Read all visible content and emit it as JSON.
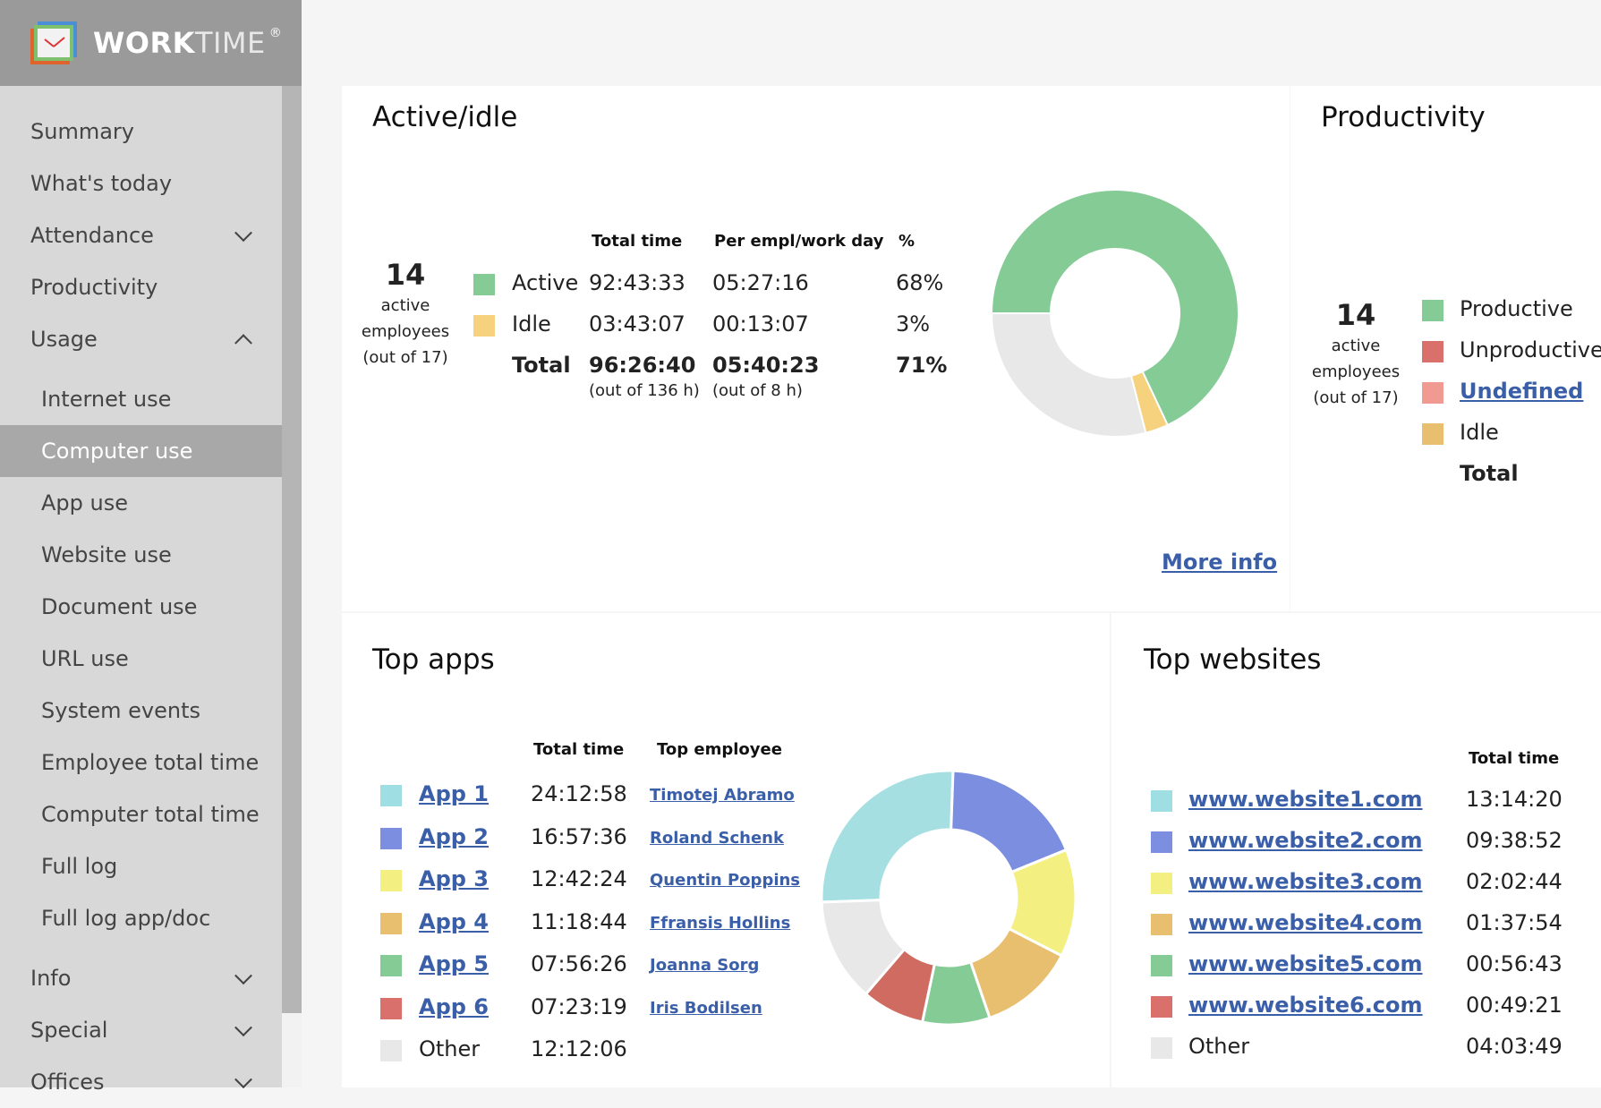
{
  "app": {
    "name_bold": "WORK",
    "name_light": "TIME",
    "reg": "®"
  },
  "menu": [
    {
      "label": "Summary"
    },
    {
      "label": "What's today"
    },
    {
      "label": "Attendance"
    },
    {
      "label": "Productivity"
    },
    {
      "label": "Usage"
    },
    {
      "label": "Internet use"
    },
    {
      "label": "Computer use"
    },
    {
      "label": "App use"
    },
    {
      "label": "Website use"
    },
    {
      "label": "Document use"
    },
    {
      "label": "URL use"
    },
    {
      "label": "System events"
    },
    {
      "label": "Employee total time"
    },
    {
      "label": "Computer total time"
    },
    {
      "label": "Full log"
    },
    {
      "label": "Full log app/doc"
    },
    {
      "label": "Info"
    },
    {
      "label": "Special"
    },
    {
      "label": "Offices"
    }
  ],
  "active_idle": {
    "title": "Active/idle",
    "employees": {
      "count": "14",
      "l1": "active",
      "l2": "employees",
      "l3": "(out of 17)"
    },
    "headers": {
      "total": "Total time",
      "per": "Per empl/work day",
      "pct": "%"
    },
    "rows": [
      {
        "label": "Active",
        "total": "92:43:33",
        "per": "05:27:16",
        "pct": "68%",
        "color": "#85cb96"
      },
      {
        "label": "Idle",
        "total": "03:43:07",
        "per": "00:13:07",
        "pct": "3%",
        "color": "#f6d27e"
      }
    ],
    "total": {
      "label": "Total",
      "total": "96:26:40",
      "total_sub": "(out of 136 h)",
      "per": "05:40:23",
      "per_sub": "(out of 8 h)",
      "pct": "71%"
    },
    "more_info": "More info",
    "donut": [
      {
        "name": "Active",
        "value": 68,
        "color": "#85cb96"
      },
      {
        "name": "Idle",
        "value": 3,
        "color": "#f6d27e"
      },
      {
        "name": "Remaining",
        "value": 29,
        "color": "#e8e8e8"
      }
    ]
  },
  "productivity": {
    "title": "Productivity",
    "employees": {
      "count": "14",
      "l1": "active",
      "l2": "employees",
      "l3": "(out of 17)"
    },
    "legend": [
      {
        "label": "Productive",
        "color": "#85cb96",
        "link": false
      },
      {
        "label": "Unproductive",
        "color": "#d9706b",
        "link": false
      },
      {
        "label": "Undefined",
        "color": "#f19a92",
        "link": true
      },
      {
        "label": "Idle",
        "color": "#e8bf6f",
        "link": false
      }
    ],
    "total_label": "Total"
  },
  "top_apps": {
    "title": "Top apps",
    "headers": {
      "total": "Total time",
      "emp": "Top employee"
    },
    "rows": [
      {
        "name": "App 1",
        "total": "24:12:58",
        "emp": "Timotej Abramo",
        "color": "#9fdfe3"
      },
      {
        "name": "App 2",
        "total": "16:57:36",
        "emp": "Roland Schenk",
        "color": "#7b8ee0"
      },
      {
        "name": "App 3",
        "total": "12:42:24",
        "emp": "Quentin Poppins",
        "color": "#f3f081"
      },
      {
        "name": "App 4",
        "total": "11:18:44",
        "emp": "Ffransis Hollins",
        "color": "#e8bf6f"
      },
      {
        "name": "App 5",
        "total": "07:56:26",
        "emp": "Joanna Sorg",
        "color": "#85cb96"
      },
      {
        "name": "App 6",
        "total": "07:23:19",
        "emp": "Iris Bodilsen",
        "color": "#d9706b"
      },
      {
        "name": "Other",
        "total": "12:12:06",
        "emp": "",
        "color": "#e8e8e8"
      }
    ],
    "donut": [
      {
        "name": "App 1",
        "value": 24.22,
        "color": "#a5dfe1"
      },
      {
        "name": "App 2",
        "value": 16.96,
        "color": "#7b8ee0"
      },
      {
        "name": "App 3",
        "value": 12.71,
        "color": "#f3f081"
      },
      {
        "name": "App 4",
        "value": 11.31,
        "color": "#e8bf6f"
      },
      {
        "name": "App 5",
        "value": 7.94,
        "color": "#85cb96"
      },
      {
        "name": "App 6",
        "value": 7.39,
        "color": "#d06b62"
      },
      {
        "name": "Other",
        "value": 12.2,
        "color": "#e8e8e8"
      }
    ]
  },
  "top_websites": {
    "title": "Top websites",
    "headers": {
      "total": "Total time"
    },
    "rows": [
      {
        "name": "www.website1.com",
        "total": "13:14:20",
        "color": "#9fdfe3"
      },
      {
        "name": "www.website2.com",
        "total": "09:38:52",
        "color": "#7b8ee0"
      },
      {
        "name": "www.website3.com",
        "total": "02:02:44",
        "color": "#f3f081"
      },
      {
        "name": "www.website4.com",
        "total": "01:37:54",
        "color": "#e8bf6f"
      },
      {
        "name": "www.website5.com",
        "total": "00:56:43",
        "color": "#85cb96"
      },
      {
        "name": "www.website6.com",
        "total": "00:49:21",
        "color": "#d9706b"
      },
      {
        "name": "Other",
        "total": "04:03:49",
        "color": "#e8e8e8"
      }
    ]
  }
}
